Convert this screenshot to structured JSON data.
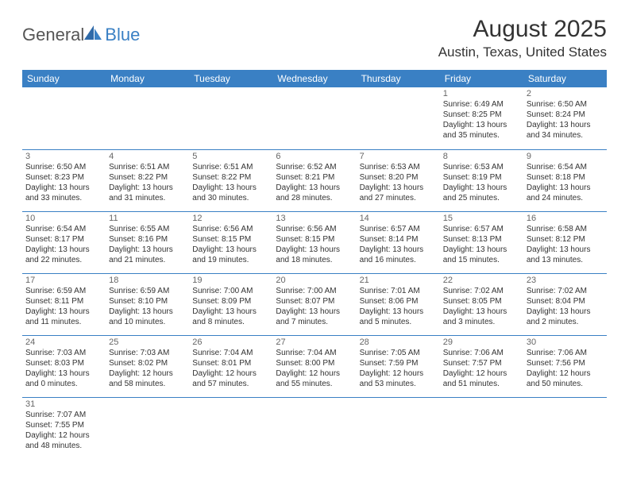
{
  "logo": {
    "general": "General",
    "blue": "Blue"
  },
  "title": "August 2025",
  "location": "Austin, Texas, United States",
  "colors": {
    "header_bg": "#3a80c4",
    "header_fg": "#ffffff",
    "row_border": "#3a80c4",
    "text": "#333333",
    "daynum": "#666666",
    "background": "#ffffff"
  },
  "fonts": {
    "title_size": 30,
    "location_size": 17,
    "dayheader_size": 12,
    "daynum_size": 11,
    "cell_size": 10
  },
  "days": [
    "Sunday",
    "Monday",
    "Tuesday",
    "Wednesday",
    "Thursday",
    "Friday",
    "Saturday"
  ],
  "weeks": [
    [
      null,
      null,
      null,
      null,
      null,
      {
        "n": "1",
        "sunrise": "Sunrise: 6:49 AM",
        "sunset": "Sunset: 8:25 PM",
        "d1": "Daylight: 13 hours",
        "d2": "and 35 minutes."
      },
      {
        "n": "2",
        "sunrise": "Sunrise: 6:50 AM",
        "sunset": "Sunset: 8:24 PM",
        "d1": "Daylight: 13 hours",
        "d2": "and 34 minutes."
      }
    ],
    [
      {
        "n": "3",
        "sunrise": "Sunrise: 6:50 AM",
        "sunset": "Sunset: 8:23 PM",
        "d1": "Daylight: 13 hours",
        "d2": "and 33 minutes."
      },
      {
        "n": "4",
        "sunrise": "Sunrise: 6:51 AM",
        "sunset": "Sunset: 8:22 PM",
        "d1": "Daylight: 13 hours",
        "d2": "and 31 minutes."
      },
      {
        "n": "5",
        "sunrise": "Sunrise: 6:51 AM",
        "sunset": "Sunset: 8:22 PM",
        "d1": "Daylight: 13 hours",
        "d2": "and 30 minutes."
      },
      {
        "n": "6",
        "sunrise": "Sunrise: 6:52 AM",
        "sunset": "Sunset: 8:21 PM",
        "d1": "Daylight: 13 hours",
        "d2": "and 28 minutes."
      },
      {
        "n": "7",
        "sunrise": "Sunrise: 6:53 AM",
        "sunset": "Sunset: 8:20 PM",
        "d1": "Daylight: 13 hours",
        "d2": "and 27 minutes."
      },
      {
        "n": "8",
        "sunrise": "Sunrise: 6:53 AM",
        "sunset": "Sunset: 8:19 PM",
        "d1": "Daylight: 13 hours",
        "d2": "and 25 minutes."
      },
      {
        "n": "9",
        "sunrise": "Sunrise: 6:54 AM",
        "sunset": "Sunset: 8:18 PM",
        "d1": "Daylight: 13 hours",
        "d2": "and 24 minutes."
      }
    ],
    [
      {
        "n": "10",
        "sunrise": "Sunrise: 6:54 AM",
        "sunset": "Sunset: 8:17 PM",
        "d1": "Daylight: 13 hours",
        "d2": "and 22 minutes."
      },
      {
        "n": "11",
        "sunrise": "Sunrise: 6:55 AM",
        "sunset": "Sunset: 8:16 PM",
        "d1": "Daylight: 13 hours",
        "d2": "and 21 minutes."
      },
      {
        "n": "12",
        "sunrise": "Sunrise: 6:56 AM",
        "sunset": "Sunset: 8:15 PM",
        "d1": "Daylight: 13 hours",
        "d2": "and 19 minutes."
      },
      {
        "n": "13",
        "sunrise": "Sunrise: 6:56 AM",
        "sunset": "Sunset: 8:15 PM",
        "d1": "Daylight: 13 hours",
        "d2": "and 18 minutes."
      },
      {
        "n": "14",
        "sunrise": "Sunrise: 6:57 AM",
        "sunset": "Sunset: 8:14 PM",
        "d1": "Daylight: 13 hours",
        "d2": "and 16 minutes."
      },
      {
        "n": "15",
        "sunrise": "Sunrise: 6:57 AM",
        "sunset": "Sunset: 8:13 PM",
        "d1": "Daylight: 13 hours",
        "d2": "and 15 minutes."
      },
      {
        "n": "16",
        "sunrise": "Sunrise: 6:58 AM",
        "sunset": "Sunset: 8:12 PM",
        "d1": "Daylight: 13 hours",
        "d2": "and 13 minutes."
      }
    ],
    [
      {
        "n": "17",
        "sunrise": "Sunrise: 6:59 AM",
        "sunset": "Sunset: 8:11 PM",
        "d1": "Daylight: 13 hours",
        "d2": "and 11 minutes."
      },
      {
        "n": "18",
        "sunrise": "Sunrise: 6:59 AM",
        "sunset": "Sunset: 8:10 PM",
        "d1": "Daylight: 13 hours",
        "d2": "and 10 minutes."
      },
      {
        "n": "19",
        "sunrise": "Sunrise: 7:00 AM",
        "sunset": "Sunset: 8:09 PM",
        "d1": "Daylight: 13 hours",
        "d2": "and 8 minutes."
      },
      {
        "n": "20",
        "sunrise": "Sunrise: 7:00 AM",
        "sunset": "Sunset: 8:07 PM",
        "d1": "Daylight: 13 hours",
        "d2": "and 7 minutes."
      },
      {
        "n": "21",
        "sunrise": "Sunrise: 7:01 AM",
        "sunset": "Sunset: 8:06 PM",
        "d1": "Daylight: 13 hours",
        "d2": "and 5 minutes."
      },
      {
        "n": "22",
        "sunrise": "Sunrise: 7:02 AM",
        "sunset": "Sunset: 8:05 PM",
        "d1": "Daylight: 13 hours",
        "d2": "and 3 minutes."
      },
      {
        "n": "23",
        "sunrise": "Sunrise: 7:02 AM",
        "sunset": "Sunset: 8:04 PM",
        "d1": "Daylight: 13 hours",
        "d2": "and 2 minutes."
      }
    ],
    [
      {
        "n": "24",
        "sunrise": "Sunrise: 7:03 AM",
        "sunset": "Sunset: 8:03 PM",
        "d1": "Daylight: 13 hours",
        "d2": "and 0 minutes."
      },
      {
        "n": "25",
        "sunrise": "Sunrise: 7:03 AM",
        "sunset": "Sunset: 8:02 PM",
        "d1": "Daylight: 12 hours",
        "d2": "and 58 minutes."
      },
      {
        "n": "26",
        "sunrise": "Sunrise: 7:04 AM",
        "sunset": "Sunset: 8:01 PM",
        "d1": "Daylight: 12 hours",
        "d2": "and 57 minutes."
      },
      {
        "n": "27",
        "sunrise": "Sunrise: 7:04 AM",
        "sunset": "Sunset: 8:00 PM",
        "d1": "Daylight: 12 hours",
        "d2": "and 55 minutes."
      },
      {
        "n": "28",
        "sunrise": "Sunrise: 7:05 AM",
        "sunset": "Sunset: 7:59 PM",
        "d1": "Daylight: 12 hours",
        "d2": "and 53 minutes."
      },
      {
        "n": "29",
        "sunrise": "Sunrise: 7:06 AM",
        "sunset": "Sunset: 7:57 PM",
        "d1": "Daylight: 12 hours",
        "d2": "and 51 minutes."
      },
      {
        "n": "30",
        "sunrise": "Sunrise: 7:06 AM",
        "sunset": "Sunset: 7:56 PM",
        "d1": "Daylight: 12 hours",
        "d2": "and 50 minutes."
      }
    ],
    [
      {
        "n": "31",
        "sunrise": "Sunrise: 7:07 AM",
        "sunset": "Sunset: 7:55 PM",
        "d1": "Daylight: 12 hours",
        "d2": "and 48 minutes."
      },
      null,
      null,
      null,
      null,
      null,
      null
    ]
  ]
}
